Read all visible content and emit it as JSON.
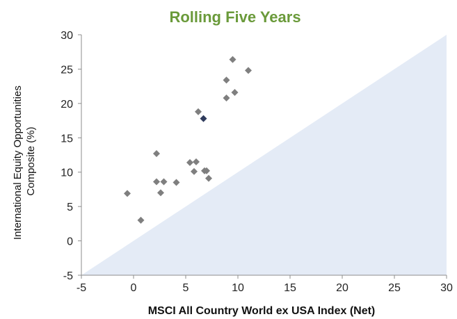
{
  "chart_data": {
    "type": "scatter",
    "title": "Rolling Five Years",
    "xlabel": "MSCI All Country World ex USA Index (Net)",
    "ylabel_lines": [
      "International Equity Opportunities",
      "Composite (%)"
    ],
    "xlim": [
      -5,
      30
    ],
    "ylim": [
      -5,
      30
    ],
    "x_ticks": [
      -5,
      0,
      5,
      10,
      15,
      20,
      25,
      30
    ],
    "y_ticks": [
      -5,
      0,
      5,
      10,
      15,
      20,
      25,
      30
    ],
    "grid": false,
    "diagonal_region": "below y = x line shaded",
    "colors": {
      "title": "#6a9a3a",
      "points": "#7f7f7f",
      "highlight": "#2f3b5c",
      "region": "#e4ebf6",
      "axis": "#8c8c8c"
    },
    "points": [
      {
        "x": -0.6,
        "y": 6.9
      },
      {
        "x": 0.7,
        "y": 3.0
      },
      {
        "x": 2.2,
        "y": 12.7
      },
      {
        "x": 2.2,
        "y": 8.6
      },
      {
        "x": 2.6,
        "y": 7.0
      },
      {
        "x": 2.9,
        "y": 8.6
      },
      {
        "x": 4.1,
        "y": 8.5
      },
      {
        "x": 5.4,
        "y": 11.4
      },
      {
        "x": 5.8,
        "y": 10.1
      },
      {
        "x": 6.0,
        "y": 11.5
      },
      {
        "x": 6.2,
        "y": 18.8
      },
      {
        "x": 6.8,
        "y": 10.2
      },
      {
        "x": 7.0,
        "y": 10.2
      },
      {
        "x": 7.2,
        "y": 9.1
      },
      {
        "x": 8.9,
        "y": 23.4
      },
      {
        "x": 8.9,
        "y": 20.8
      },
      {
        "x": 9.5,
        "y": 26.4
      },
      {
        "x": 9.7,
        "y": 21.6
      },
      {
        "x": 11.0,
        "y": 24.8
      }
    ],
    "highlight_points": [
      {
        "x": 6.7,
        "y": 17.8
      }
    ]
  }
}
